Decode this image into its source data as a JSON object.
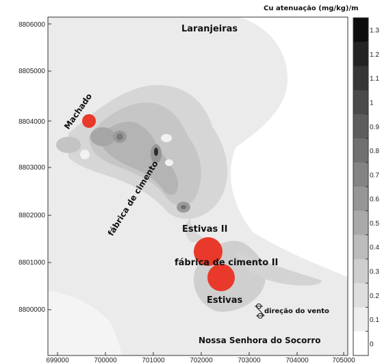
{
  "legend": {
    "title": "Cu atenuação (mg/kg)/m",
    "levels": [
      1.3,
      1.2,
      1.1,
      1,
      0.9,
      0.8,
      0.7,
      0.6,
      0.5,
      0.4,
      0.3,
      0.2,
      0.1,
      0
    ],
    "level_labels": [
      "1.3",
      "1.2",
      "1.1",
      "1",
      "0.9",
      "0.8",
      "0.7",
      "0.6",
      "0.5",
      "0.4",
      "0.3",
      "0.2",
      "0.1",
      "0"
    ],
    "colors": [
      "#0d0d0d",
      "#232323",
      "#363636",
      "#4a4a4a",
      "#5d5d5d",
      "#707070",
      "#838383",
      "#969696",
      "#a9a9a9",
      "#bcbcbc",
      "#cecece",
      "#dedede",
      "#eeeeee",
      "#ffffff"
    ]
  },
  "axes": {
    "x_ticks": [
      "699000",
      "700000",
      "701000",
      "702000",
      "703000",
      "704000",
      "705000"
    ],
    "y_ticks": [
      "8806000",
      "8805000",
      "8804000",
      "8803000",
      "8802000",
      "8801000",
      "8800000"
    ]
  },
  "places": {
    "laranjeiras": "Laranjeiras",
    "machado": "Machado",
    "fabrica1": "fábrica de cimento",
    "estivas2": "Estivas II",
    "fabrica2": "fábrica de cimento II",
    "estivas": "Estivas",
    "socorro": "Nossa Senhora do Socorro"
  },
  "wind_label": "direção do vento",
  "marker_color": "#e8392a"
}
